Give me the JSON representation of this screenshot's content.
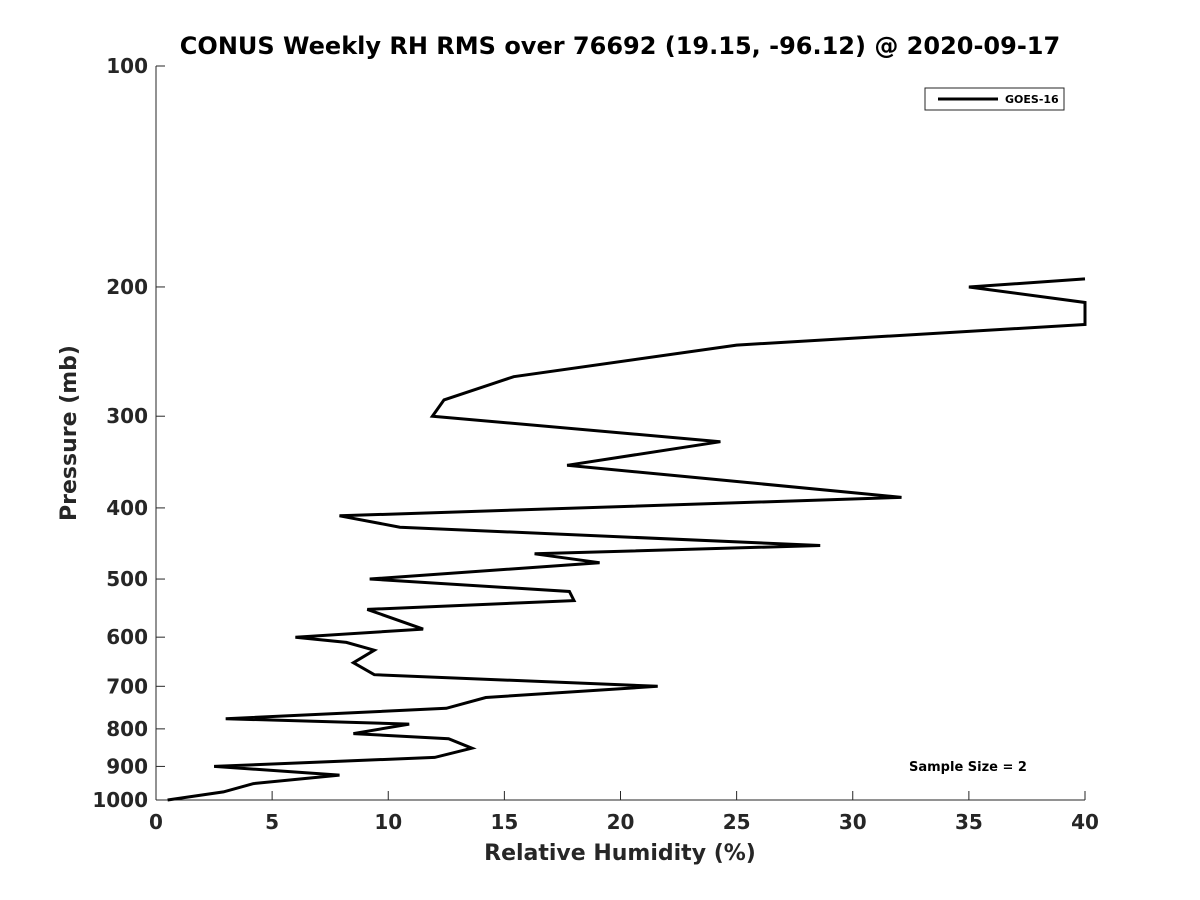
{
  "chart_data": {
    "type": "line",
    "title": "CONUS Weekly RH RMS over 76692 (19.15, -96.12) @ 2020-09-17",
    "xlabel": "Relative Humidity (%)",
    "ylabel": "Pressure (mb)",
    "xlim": [
      0,
      40
    ],
    "ylim": [
      100,
      1000
    ],
    "yscale": "log",
    "reverse_y": true,
    "xticks": [
      0,
      5,
      10,
      15,
      20,
      25,
      30,
      35,
      40
    ],
    "yticks": [
      100,
      200,
      300,
      400,
      500,
      600,
      700,
      800,
      900,
      1000
    ],
    "grid": false,
    "legend_position": "top-right",
    "annotation": "Sample Size = 2",
    "series": [
      {
        "name": "GOES-16",
        "color": "#000000",
        "x": [
          0.5,
          2.9,
          4.2,
          7.9,
          2.5,
          12.0,
          13.6,
          12.6,
          8.5,
          10.9,
          3.0,
          12.5,
          14.2,
          21.6,
          9.4,
          8.5,
          9.4,
          8.2,
          6.0,
          11.5,
          9.1,
          18.0,
          17.8,
          9.2,
          19.1,
          16.3,
          28.6,
          10.5,
          7.9,
          32.1,
          22.6,
          17.7,
          24.3,
          11.9,
          12.4,
          15.4,
          25.0,
          40.0,
          40.0,
          35.0,
          40.0
        ],
        "y": [
          1000,
          975,
          950,
          925,
          900,
          875,
          850,
          825,
          812,
          788,
          775,
          750,
          725,
          700,
          675,
          650,
          625,
          610,
          600,
          585,
          550,
          535,
          520,
          500,
          475,
          462,
          450,
          425,
          410,
          387,
          362,
          350,
          325,
          300,
          285,
          265,
          240,
          225,
          210,
          200,
          195
        ]
      }
    ]
  }
}
